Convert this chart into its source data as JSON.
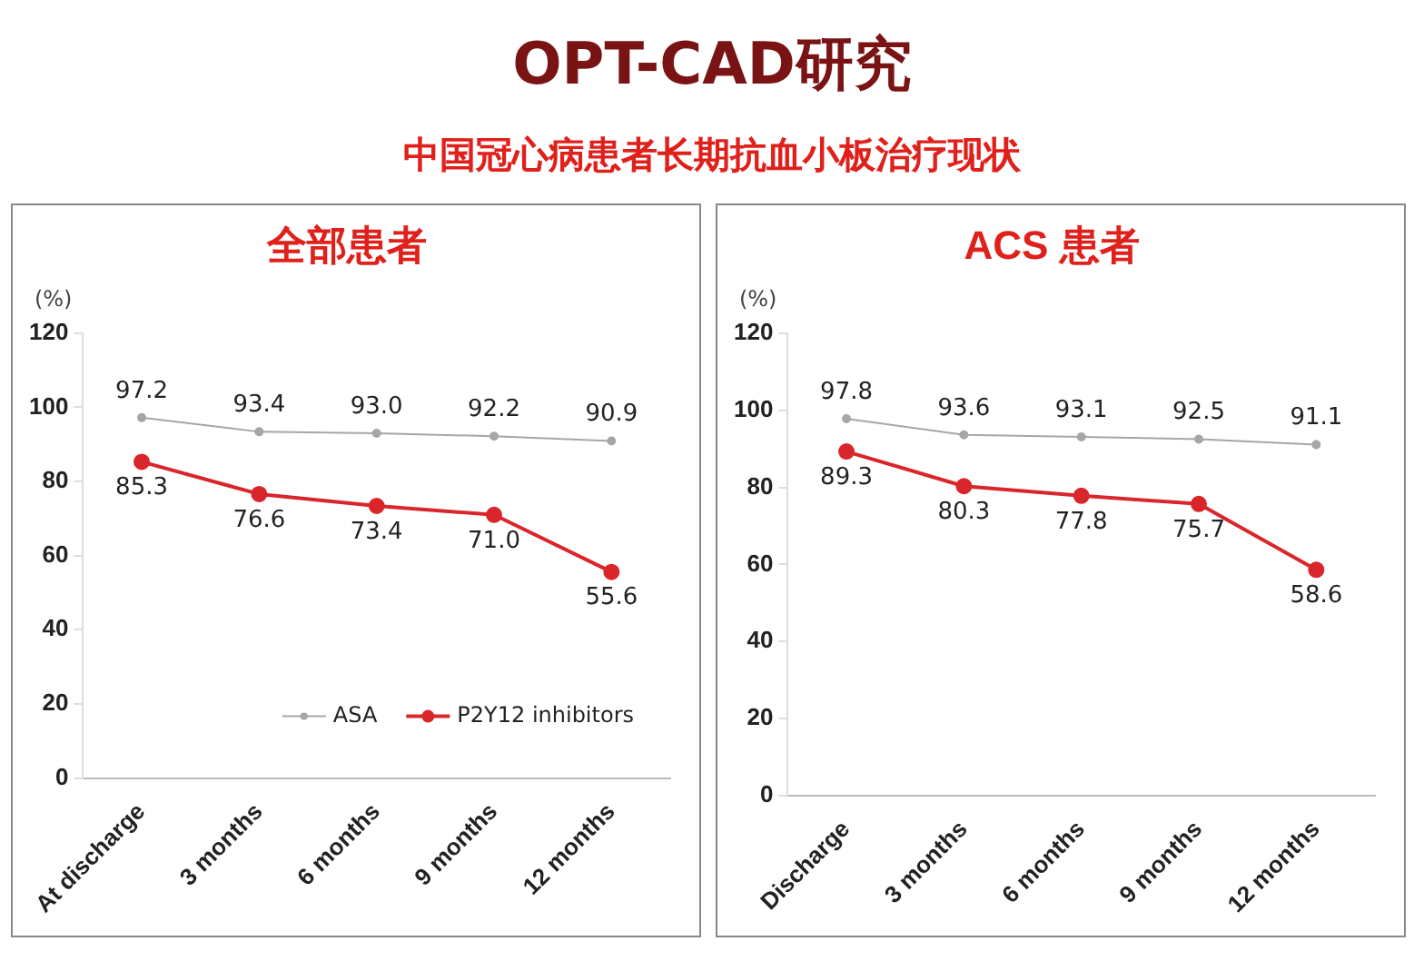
{
  "chart_data": [
    {
      "type": "other",
      "title": "OPT-CAD研究",
      "subtitle": "中国冠心病患者长期抗血小板治疗现状"
    },
    {
      "type": "line",
      "title": "全部患者",
      "ylabel": "(%)",
      "categories": [
        "At discharge",
        "3 months",
        "6 months",
        "9 months",
        "12 months"
      ],
      "series": [
        {
          "name": "ASA",
          "color": "#a6a6a6",
          "values": [
            97.2,
            93.4,
            93.0,
            92.2,
            90.9
          ],
          "value_labels": [
            "97.2",
            "93.4",
            "93.0",
            "92.2",
            "90.9"
          ]
        },
        {
          "name": "P2Y12 inhibitors",
          "color": "#d9262b",
          "values": [
            85.3,
            76.6,
            73.4,
            71.0,
            55.6
          ],
          "value_labels": [
            "85.3",
            "76.6",
            "73.4",
            "71.0",
            "55.6"
          ]
        }
      ],
      "ylim": [
        0,
        120
      ],
      "yticks": [
        0,
        20,
        40,
        60,
        80,
        100,
        120
      ],
      "grid": false,
      "legend": "bottom right",
      "marker": "circle",
      "line_style": "solid"
    },
    {
      "type": "line",
      "title": "ACS 患者",
      "ylabel": "(%)",
      "categories": [
        "Discharge",
        "3 months",
        "6 months",
        "9 months",
        "12 months"
      ],
      "series": [
        {
          "color": "#a6a6a6",
          "values": [
            97.8,
            93.6,
            93.1,
            92.5,
            91.1
          ],
          "value_labels": [
            "97.8",
            "93.6",
            "93.1",
            "92.5",
            "91.1"
          ]
        },
        {
          "color": "#d9262b",
          "values": [
            89.3,
            80.3,
            77.8,
            75.7,
            58.6
          ],
          "value_labels": [
            "89.3",
            "80.3",
            "77.8",
            "75.7",
            "58.6"
          ]
        }
      ],
      "ylim": [
        0,
        120
      ],
      "yticks": [
        0,
        20,
        40,
        60,
        80,
        100,
        120
      ],
      "grid": false,
      "legend": false,
      "marker": "circle",
      "line_style": "solid"
    }
  ]
}
